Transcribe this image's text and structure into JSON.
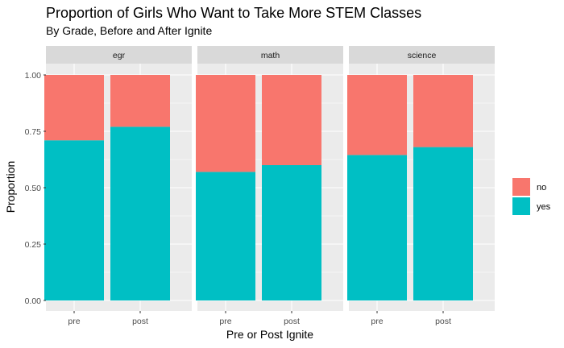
{
  "chart_data": {
    "type": "bar",
    "stacked": true,
    "title": "Proportion of Girls Who Want to Take More STEM Classes",
    "subtitle": "By Grade, Before and After Ignite",
    "xlabel": "Pre or Post Ignite",
    "ylabel": "Proportion",
    "ylim": [
      0,
      1
    ],
    "yticks": [
      "0.00",
      "0.25",
      "0.50",
      "0.75",
      "1.00"
    ],
    "categories": [
      "pre",
      "post"
    ],
    "legend": {
      "position": "right",
      "entries": [
        {
          "label": "no",
          "color": "#F8766D"
        },
        {
          "label": "yes",
          "color": "#00BFC4"
        }
      ]
    },
    "panels": [
      {
        "name": "egr",
        "series": [
          {
            "name": "yes",
            "color": "#00BFC4",
            "values": [
              0.71,
              0.77
            ]
          },
          {
            "name": "no",
            "color": "#F8766D",
            "values": [
              0.29,
              0.23
            ]
          }
        ]
      },
      {
        "name": "math",
        "series": [
          {
            "name": "yes",
            "color": "#00BFC4",
            "values": [
              0.57,
              0.6
            ]
          },
          {
            "name": "no",
            "color": "#F8766D",
            "values": [
              0.43,
              0.4
            ]
          }
        ]
      },
      {
        "name": "science",
        "series": [
          {
            "name": "yes",
            "color": "#00BFC4",
            "values": [
              0.645,
              0.68
            ]
          },
          {
            "name": "no",
            "color": "#F8766D",
            "values": [
              0.355,
              0.32
            ]
          }
        ]
      }
    ],
    "grid": true
  }
}
